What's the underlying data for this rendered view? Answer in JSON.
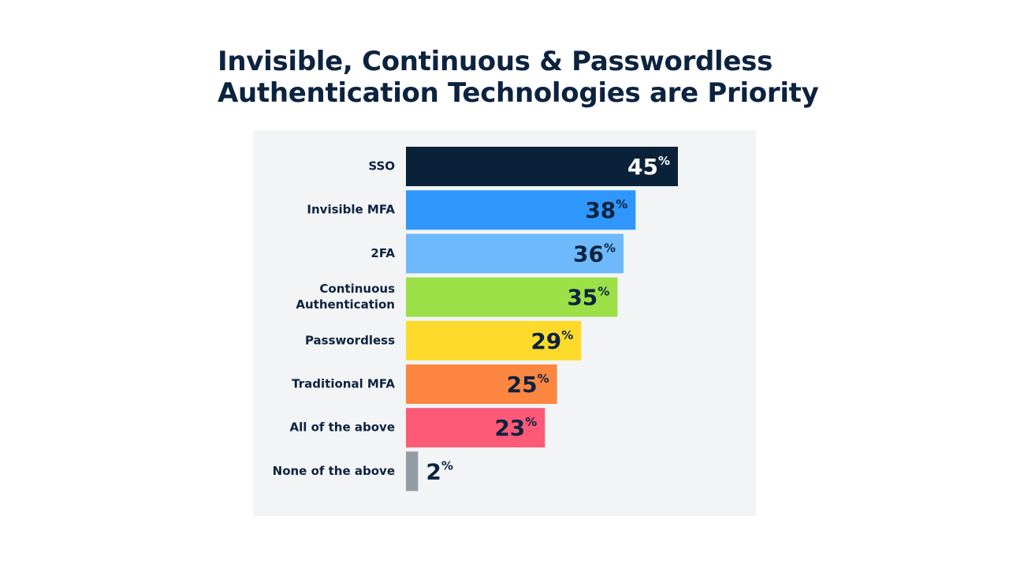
{
  "slide": {
    "title_line1": "Invisible, Continuous & Passwordless",
    "title_line2": "Authentication Technologies are Priority"
  },
  "chart_data": {
    "type": "bar",
    "orientation": "horizontal",
    "categories": [
      [
        "SSO"
      ],
      [
        "Invisible MFA"
      ],
      [
        "2FA"
      ],
      [
        "Continuous",
        "Authentication"
      ],
      [
        "Passwordless"
      ],
      [
        "Traditional MFA"
      ],
      [
        "All of the above"
      ],
      [
        "None of the above"
      ]
    ],
    "values": [
      45,
      38,
      36,
      35,
      29,
      25,
      23,
      2
    ],
    "value_labels": [
      "45",
      "38",
      "36",
      "35",
      "29",
      "25",
      "23",
      "2"
    ],
    "value_suffix": "%",
    "colors": [
      "#0a2239",
      "#2f97fb",
      "#6db9fc",
      "#9ae046",
      "#fedb2b",
      "#fd8640",
      "#fd5a78",
      "#939ba5"
    ],
    "label_colors": [
      "#ffffff",
      "#0c2340",
      "#0c2340",
      "#0c2340",
      "#0c2340",
      "#0c2340",
      "#0c2340",
      "#0c2340"
    ],
    "title": "Invisible, Continuous & Passwordless Authentication Technologies are Priority",
    "xlabel": "",
    "ylabel": "",
    "xlim": [
      0,
      45
    ],
    "grid": false,
    "legend": "none"
  }
}
